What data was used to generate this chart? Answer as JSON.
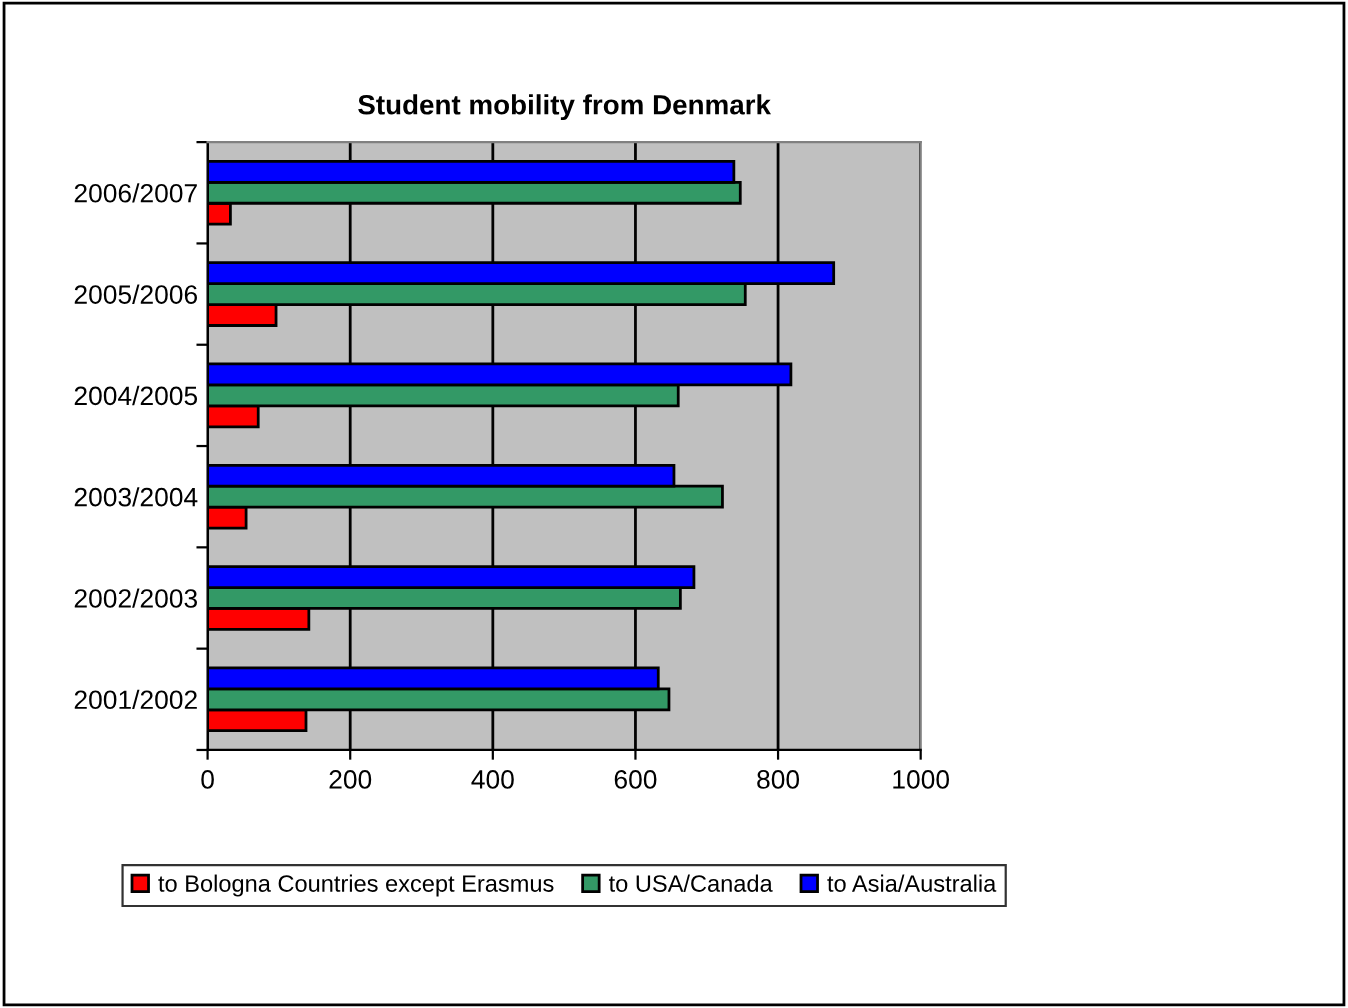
{
  "chart_data": {
    "type": "bar",
    "orientation": "horizontal",
    "title": "Student mobility from Denmark",
    "categories": [
      "2006/2007",
      "2005/2006",
      "2004/2005",
      "2003/2004",
      "2002/2003",
      "2001/2002"
    ],
    "series": [
      {
        "name": "to Bologna Countries except Erasmus",
        "color": "#ff0000",
        "values": [
          32,
          96,
          71,
          54,
          142,
          138
        ]
      },
      {
        "name": "to USA/Canada",
        "color": "#339966",
        "values": [
          747,
          754,
          660,
          722,
          663,
          647
        ]
      },
      {
        "name": "to Asia/Australia",
        "color": "#0000ff",
        "values": [
          738,
          878,
          818,
          654,
          682,
          632
        ]
      }
    ],
    "xlim": [
      0,
      1000
    ],
    "xticks": [
      0,
      200,
      400,
      600,
      800,
      1000
    ],
    "grid": "x",
    "legend": "bottom"
  }
}
